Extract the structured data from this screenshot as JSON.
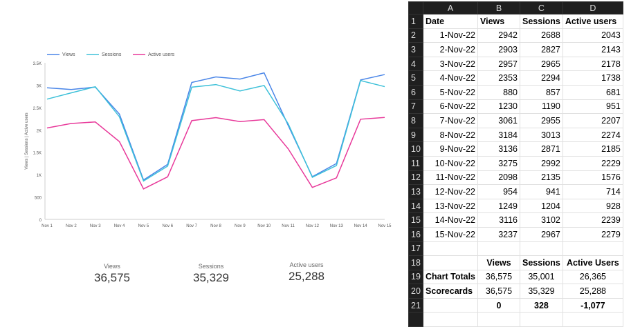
{
  "chart_data": {
    "type": "line",
    "ylabel": "Views | Sessions | Active users",
    "ylim": [
      0,
      3500
    ],
    "yticks": [
      "0",
      "500",
      "1K",
      "1.5K",
      "2K",
      "2.5K",
      "3K",
      "3.5K"
    ],
    "categories": [
      "Nov 1",
      "Nov 2",
      "Nov 3",
      "Nov 4",
      "Nov 5",
      "Nov 6",
      "Nov 7",
      "Nov 8",
      "Nov 9",
      "Nov 10",
      "Nov 11",
      "Nov 12",
      "Nov 13",
      "Nov 14",
      "Nov 15"
    ],
    "series": [
      {
        "name": "Views",
        "color": "#4a86e8",
        "values": [
          2942,
          2903,
          2957,
          2353,
          880,
          1230,
          3061,
          3184,
          3136,
          3275,
          2098,
          954,
          1249,
          3116,
          3237
        ]
      },
      {
        "name": "Sessions",
        "color": "#3ec1d9",
        "values": [
          2688,
          2827,
          2965,
          2294,
          857,
          1190,
          2955,
          3013,
          2871,
          2992,
          2135,
          941,
          1204,
          3102,
          2967
        ]
      },
      {
        "name": "Active users",
        "color": "#e8399a",
        "values": [
          2043,
          2143,
          2178,
          1738,
          681,
          951,
          2207,
          2274,
          2185,
          2229,
          1576,
          714,
          928,
          2239,
          2279
        ]
      }
    ],
    "legend": "top-left"
  },
  "scorecards": [
    {
      "label": "Views",
      "value": "36,575"
    },
    {
      "label": "Sessions",
      "value": "35,329"
    },
    {
      "label": "Active users",
      "value": "25,288"
    }
  ],
  "sheet": {
    "cols": [
      "A",
      "B",
      "C",
      "D"
    ],
    "header": [
      "Date",
      "Views",
      "Sessions",
      "Active users"
    ],
    "rows": [
      [
        "1-Nov-22",
        "2942",
        "2688",
        "2043"
      ],
      [
        "2-Nov-22",
        "2903",
        "2827",
        "2143"
      ],
      [
        "3-Nov-22",
        "2957",
        "2965",
        "2178"
      ],
      [
        "4-Nov-22",
        "2353",
        "2294",
        "1738"
      ],
      [
        "5-Nov-22",
        "880",
        "857",
        "681"
      ],
      [
        "6-Nov-22",
        "1230",
        "1190",
        "951"
      ],
      [
        "7-Nov-22",
        "3061",
        "2955",
        "2207"
      ],
      [
        "8-Nov-22",
        "3184",
        "3013",
        "2274"
      ],
      [
        "9-Nov-22",
        "3136",
        "2871",
        "2185"
      ],
      [
        "10-Nov-22",
        "3275",
        "2992",
        "2229"
      ],
      [
        "11-Nov-22",
        "2098",
        "2135",
        "1576"
      ],
      [
        "12-Nov-22",
        "954",
        "941",
        "714"
      ],
      [
        "13-Nov-22",
        "1249",
        "1204",
        "928"
      ],
      [
        "14-Nov-22",
        "3116",
        "3102",
        "2239"
      ],
      [
        "15-Nov-22",
        "3237",
        "2967",
        "2279"
      ]
    ],
    "summary_header": [
      "",
      "Views",
      "Sessions",
      "Active Users"
    ],
    "chart_totals": [
      "Chart Totals",
      "36,575",
      "35,001",
      "26,365"
    ],
    "scorecards": [
      "Scorecards",
      "36,575",
      "35,329",
      "25,288"
    ],
    "diff": [
      "",
      "0",
      "328",
      "-1,077"
    ]
  }
}
